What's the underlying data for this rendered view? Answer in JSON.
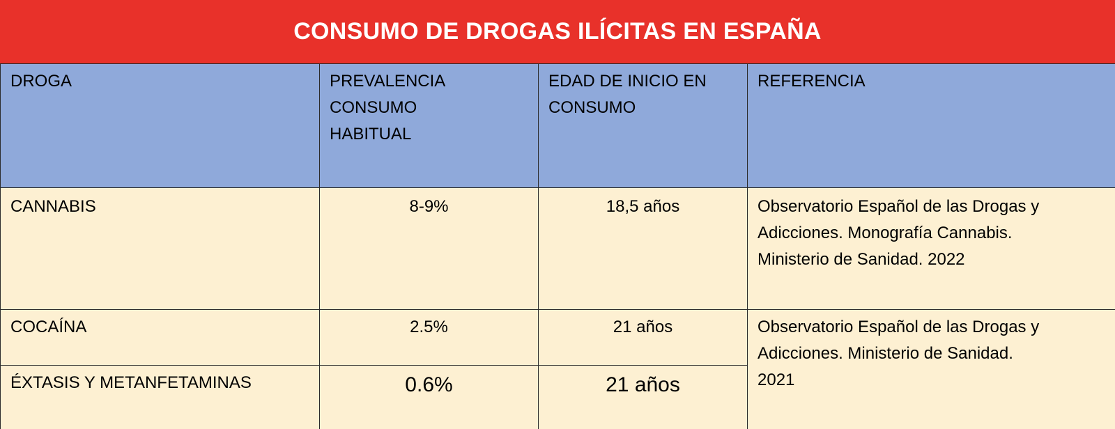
{
  "title": "CONSUMO DE DROGAS ILÍCITAS EN ESPAÑA",
  "colors": {
    "title_bg": "#e8312a",
    "header_bg": "#8fa9da",
    "row_bg": "#fdf0d2"
  },
  "headers": {
    "droga": "DROGA",
    "prevalencia_l1": "PREVALENCIA",
    "prevalencia_l2": "CONSUMO",
    "prevalencia_l3": "HABITUAL",
    "edad_l1": "EDAD DE INICIO EN",
    "edad_l2": "CONSUMO",
    "referencia": "REFERENCIA"
  },
  "rows": [
    {
      "droga": "CANNABIS",
      "prevalencia": "8-9%",
      "edad": "18,5 años",
      "ref_l1": "Observatorio Español de las Drogas y",
      "ref_l2": "Adicciones. Monografía Cannabis.",
      "ref_l3": "Ministerio de Sanidad. 2022"
    },
    {
      "droga": "COCAÍNA",
      "prevalencia": "2.5%",
      "edad": "21 años",
      "ref_l1": "Observatorio Español de las Drogas y",
      "ref_l2": "Adicciones. Ministerio de Sanidad.",
      "ref_l3": "2021"
    },
    {
      "droga": "ÉXTASIS Y METANFETAMINAS",
      "prevalencia": "0.6%",
      "edad": "21 años"
    }
  ]
}
